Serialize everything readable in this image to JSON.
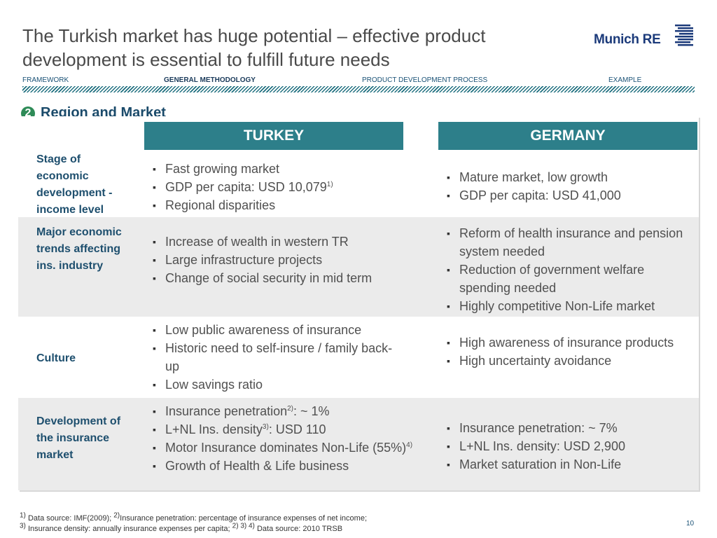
{
  "header": {
    "title": "The Turkish market has huge potential – effective product development is essential to fulfill future needs",
    "logo_text": "Munich RE"
  },
  "nav": {
    "items": [
      {
        "label": "FRAMEWORK",
        "active": false
      },
      {
        "label": "GENERAL METHODOLOGY",
        "active": true
      },
      {
        "label": "PRODUCT DEVELOPMENT PROCESS",
        "active": false
      },
      {
        "label": "EXAMPLE",
        "active": false
      }
    ]
  },
  "section": {
    "number": "2",
    "title": "Region and Market"
  },
  "table": {
    "columns": [
      "TURKEY",
      "GERMANY"
    ],
    "rows": [
      {
        "label": "Stage of economic development - income level",
        "turkey": [
          {
            "text": "Fast growing market"
          },
          {
            "text": "GDP per capita: USD 10,079",
            "sup": "1)"
          },
          {
            "text": "Regional disparities"
          }
        ],
        "germany": [
          {
            "text": "Mature market, low growth"
          },
          {
            "text": "GDP per capita: USD 41,000"
          }
        ]
      },
      {
        "label": "Major economic trends affecting ins. industry",
        "turkey": [
          {
            "text": "Increase of wealth in western TR"
          },
          {
            "text": "Large infrastructure projects"
          },
          {
            "text": "Change of social security in mid term"
          }
        ],
        "germany": [
          {
            "text": "Reform of health insurance and pension system needed"
          },
          {
            "text": "Reduction of government welfare spending needed"
          },
          {
            "text": "Highly competitive Non-Life market"
          }
        ]
      },
      {
        "label": "Culture",
        "turkey": [
          {
            "text": "Low public awareness of insurance"
          },
          {
            "text": "Historic need to self-insure / family back-up"
          },
          {
            "text": "Low savings ratio"
          }
        ],
        "germany": [
          {
            "text": "High awareness of insurance products"
          },
          {
            "text": "High uncertainty avoidance"
          }
        ]
      },
      {
        "label": "Development of the insurance market",
        "turkey": [
          {
            "pre": "Insurance penetration",
            "sup": "2)",
            "post": ": ~ 1%"
          },
          {
            "pre": "L+NL Ins. density",
            "sup": "3)",
            "post": ": USD 110"
          },
          {
            "pre": "Motor Insurance dominates Non-Life (55%)",
            "sup": "4)",
            "post": ""
          },
          {
            "pre": "Growth of Health & Life business",
            "sup": "",
            "post": ""
          }
        ],
        "germany": [
          {
            "text": "Insurance penetration: ~ 7%"
          },
          {
            "text": "L+NL Ins. density: USD 2,900"
          },
          {
            "text": "Market saturation in Non-Life"
          }
        ]
      }
    ]
  },
  "footnotes": {
    "line1": {
      "sup1": "1)",
      "text1": "Data source: IMF(2009); ",
      "sup2": "2)",
      "text2": "Insurance penetration: percentage of insurance expenses of net income;"
    },
    "line2": {
      "sup1": "3)",
      "text1": "Insurance density: annually insurance expenses per capita; ",
      "sup2": "2) 3) 4)",
      "text2": "Data source: 2010 TRSB"
    }
  },
  "page_number": "10",
  "colors": {
    "accent": "#2d7f8a",
    "row_gray": "#ebebeb",
    "label": "#1e4f6e",
    "section_badge": "#2e8b57"
  }
}
